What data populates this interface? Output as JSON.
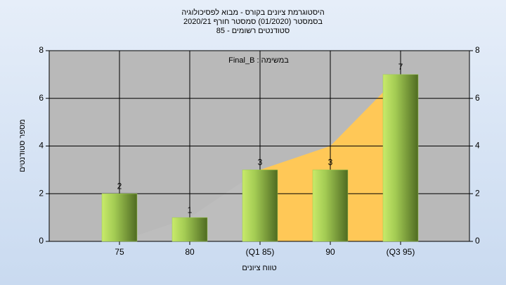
{
  "chart_data": {
    "type": "bar",
    "title": [
      "היסטוגרמת ציונים בקורס - מבוא לפסיכולוגיה",
      "בסמסטר (01/2020) סמסטר חורף 2020/21",
      "סטודנטים רשומים - 85"
    ],
    "annotation": "במשימה : Final_B",
    "xlabel": "טווח ציונים",
    "ylabel": "מספר סטודנטים",
    "categories": [
      "75",
      "80",
      "(Q1 85)",
      "90",
      "(Q3 95)"
    ],
    "values": [
      2,
      1,
      3,
      3,
      7
    ],
    "color": "#9ccc4c",
    "areas": [
      {
        "color": "#bdbdbd",
        "values": [
          0,
          1,
          3,
          null,
          null
        ]
      },
      {
        "color": "#ffc857",
        "values": [
          null,
          null,
          3,
          4,
          7
        ]
      }
    ],
    "ylim": [
      0,
      8
    ],
    "yticks": [
      0,
      2,
      4,
      6,
      8
    ],
    "y2lim": [
      0,
      8
    ],
    "y2ticks": [
      0,
      2,
      4,
      6,
      8
    ],
    "grid": true
  }
}
